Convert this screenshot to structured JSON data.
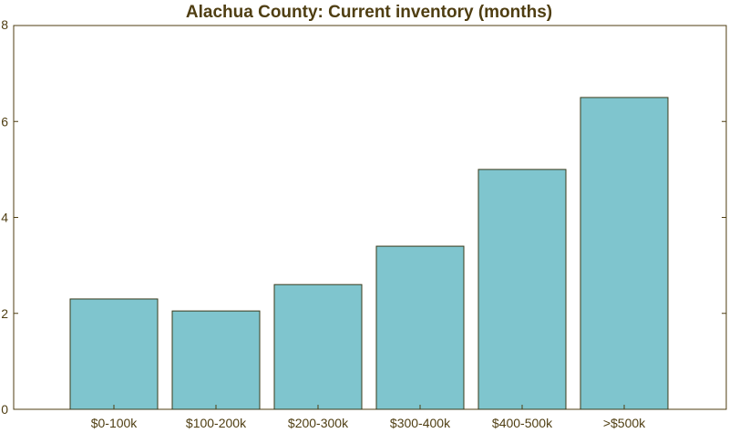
{
  "colors": {
    "bar_fill": "#7fc5ce",
    "bar_stroke": "#3a3a1a",
    "axis": "#4f3e12",
    "text": "#4f3e12",
    "background": "#ffffff"
  },
  "chart_data": {
    "type": "bar",
    "title": "Alachua County: Current inventory (months)",
    "xlabel": "",
    "ylabel": "",
    "categories": [
      "$0-100k",
      "$100-200k",
      "$200-300k",
      "$300-400k",
      "$400-500k",
      ">$500k"
    ],
    "values": [
      2.3,
      2.05,
      2.6,
      3.4,
      5.0,
      6.5
    ],
    "ylim": [
      0,
      8
    ],
    "yticks": [
      0,
      2,
      4,
      6,
      8
    ],
    "grid": false,
    "legend": "none"
  }
}
